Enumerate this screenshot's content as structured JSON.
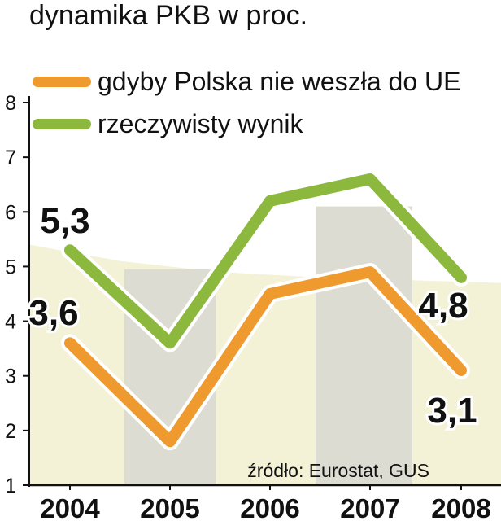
{
  "chart_data": {
    "type": "line",
    "title": "dynamika PKB w proc.",
    "categories": [
      "2004",
      "2005",
      "2006",
      "2007",
      "2008"
    ],
    "ylim": [
      1,
      8
    ],
    "yticks": [
      "1",
      "2",
      "3",
      "4",
      "5",
      "6",
      "7",
      "8"
    ],
    "grid": false,
    "legend_position": "top-left",
    "series": [
      {
        "name": "gdyby Polska nie weszła do UE",
        "color": "#ef9a2e",
        "values": [
          3.6,
          1.8,
          4.5,
          4.9,
          3.1
        ],
        "labels": [
          "3,6",
          "",
          "",
          "",
          "3,1"
        ]
      },
      {
        "name": "rzeczywisty wynik",
        "color": "#8cb83e",
        "values": [
          5.3,
          3.6,
          6.2,
          6.6,
          4.8
        ],
        "labels": [
          "5,3",
          "",
          "",
          "",
          "4,8"
        ]
      }
    ],
    "background_area": {
      "values": [
        5.4,
        5.1,
        4.9,
        4.8,
        4.7
      ]
    },
    "source": "źródło: Eurostat, GUS"
  }
}
